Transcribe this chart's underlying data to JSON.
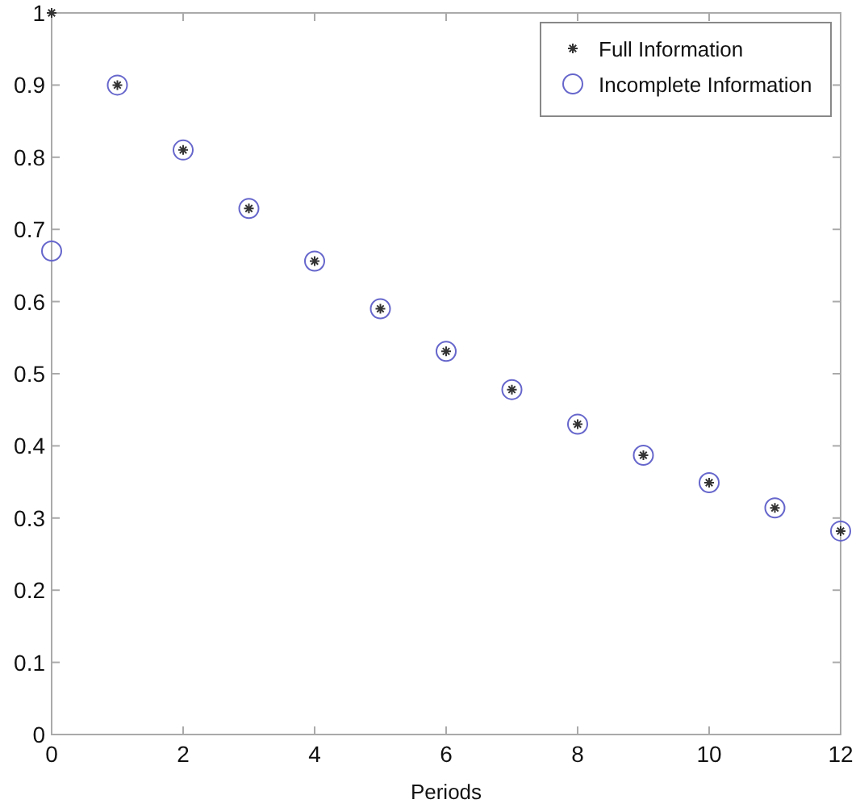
{
  "chart_data": {
    "type": "scatter",
    "xlabel": "Periods",
    "x": [
      0,
      1,
      2,
      3,
      4,
      5,
      6,
      7,
      8,
      9,
      10,
      11,
      12
    ],
    "xlim": [
      0,
      12
    ],
    "xticks": [
      0,
      2,
      4,
      6,
      8,
      10,
      12
    ],
    "ylim": [
      0,
      1
    ],
    "yticks": [
      0,
      0.1,
      0.2,
      0.3,
      0.4,
      0.5,
      0.6,
      0.7,
      0.8,
      0.9,
      1
    ],
    "grid": false,
    "legend": "top right",
    "series": [
      {
        "name": "Full Information",
        "color": "#333333",
        "marker": "cross",
        "values": [
          1,
          0.9,
          0.81,
          0.729,
          0.656,
          0.59,
          0.531,
          0.478,
          0.43,
          0.387,
          0.349,
          0.314,
          0.282
        ]
      },
      {
        "name": "Incomplete Information",
        "color": "#6666cc",
        "marker": "circle",
        "values": [
          0.67,
          0.9,
          0.81,
          0.729,
          0.656,
          0.59,
          0.531,
          0.478,
          0.43,
          0.387,
          0.349,
          0.314,
          0.282
        ]
      }
    ]
  }
}
